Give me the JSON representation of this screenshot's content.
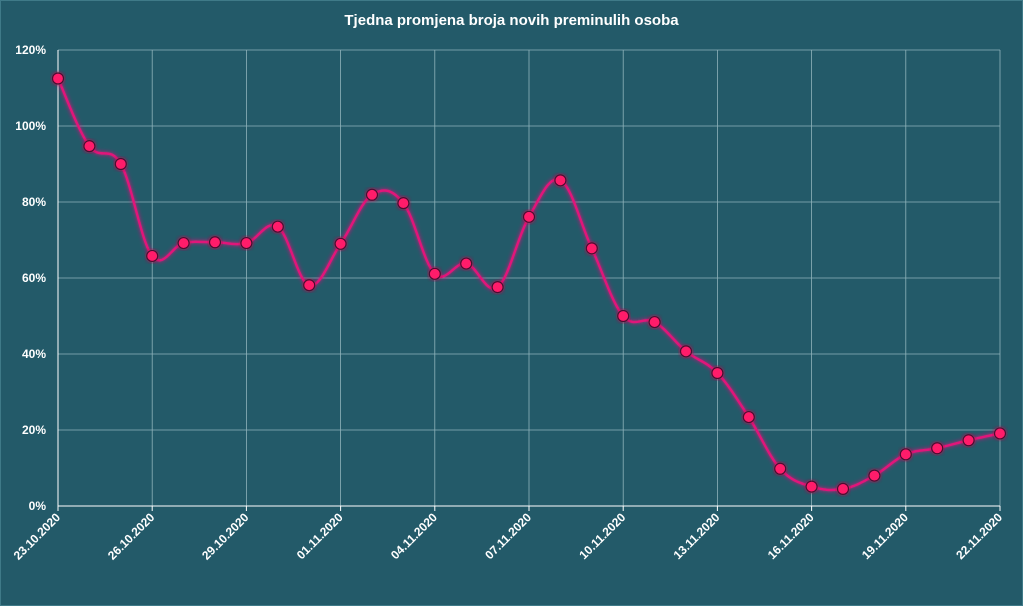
{
  "chart_data": {
    "type": "line",
    "title": "Tjedna promjena broja novih preminulih osoba",
    "xlabel": "",
    "ylabel": "",
    "x": [
      "23.10.2020",
      "24.10.2020",
      "25.10.2020",
      "26.10.2020",
      "27.10.2020",
      "28.10.2020",
      "29.10.2020",
      "30.10.2020",
      "31.10.2020",
      "01.11.2020",
      "02.11.2020",
      "03.11.2020",
      "04.11.2020",
      "05.11.2020",
      "06.11.2020",
      "07.11.2020",
      "08.11.2020",
      "09.11.2020",
      "10.11.2020",
      "11.11.2020",
      "12.11.2020",
      "13.11.2020",
      "14.11.2020",
      "15.11.2020",
      "16.11.2020",
      "17.11.2020",
      "18.11.2020",
      "19.11.2020",
      "20.11.2020",
      "21.11.2020",
      "22.11.2020"
    ],
    "x_tick_labels": [
      "23.10.2020",
      "26.10.2020",
      "29.10.2020",
      "01.11.2020",
      "04.11.2020",
      "07.11.2020",
      "10.11.2020",
      "13.11.2020",
      "16.11.2020",
      "19.11.2020",
      "22.11.2020"
    ],
    "series": [
      {
        "values": [
          112.5,
          94.7,
          90.0,
          65.8,
          69.2,
          69.4,
          69.2,
          73.5,
          58.1,
          69.0,
          81.9,
          79.7,
          61.1,
          63.8,
          57.6,
          76.1,
          85.7,
          67.8,
          50.0,
          48.4,
          40.7,
          35.0,
          23.4,
          9.8,
          5.1,
          4.5,
          8.0,
          13.6,
          15.2,
          17.3,
          19.1
        ]
      }
    ],
    "y_tick_labels": [
      "0%",
      "20%",
      "40%",
      "60%",
      "80%",
      "100%",
      "120%"
    ],
    "ylim": [
      0,
      120
    ],
    "grid": true,
    "legend": "none",
    "colors": {
      "background": "#235a69",
      "line": "#e0127a",
      "marker_fill": "#ff1a6a",
      "marker_stroke": "#4a1030",
      "grid": "#8fb3bb",
      "text": "#ffffff"
    }
  }
}
